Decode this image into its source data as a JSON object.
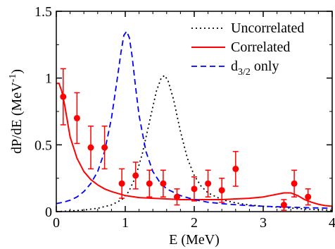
{
  "chart_data": {
    "type": "line",
    "xlabel": "E  (MeV)",
    "ylabel": {
      "main": "dP/dE  (MeV",
      "sup": "-1",
      "close": ")"
    },
    "xlim": [
      0,
      4
    ],
    "ylim": [
      0,
      1.5
    ],
    "x_ticks": [
      {
        "value": 0,
        "label": "0"
      },
      {
        "value": 1,
        "label": "1"
      },
      {
        "value": 2,
        "label": "2"
      },
      {
        "value": 3,
        "label": "3"
      },
      {
        "value": 4,
        "label": "4"
      }
    ],
    "y_ticks": [
      {
        "value": 0,
        "label": "0"
      },
      {
        "value": 0.5,
        "label": "0.5"
      },
      {
        "value": 1,
        "label": "1"
      },
      {
        "value": 1.5,
        "label": "1.5"
      }
    ],
    "grid": false,
    "legend_position": "top-right",
    "series": [
      {
        "name": "Uncorrelated",
        "style": "dotted",
        "color": "#000000",
        "x": [
          0.0,
          0.2,
          0.4,
          0.6,
          0.8,
          0.95,
          1.05,
          1.15,
          1.25,
          1.35,
          1.45,
          1.52,
          1.57,
          1.62,
          1.7,
          1.8,
          1.9,
          2.0,
          2.1,
          2.2,
          2.4,
          2.6,
          2.8,
          3.0,
          3.3,
          3.6,
          4.0
        ],
        "y": [
          0.0,
          0.005,
          0.012,
          0.025,
          0.05,
          0.09,
          0.15,
          0.26,
          0.44,
          0.67,
          0.9,
          1.0,
          1.02,
          0.98,
          0.84,
          0.6,
          0.4,
          0.27,
          0.19,
          0.14,
          0.09,
          0.065,
          0.05,
          0.04,
          0.03,
          0.02,
          0.01
        ]
      },
      {
        "name": "Correlated",
        "style": "solid",
        "color": "#ff0000",
        "x": [
          0.0,
          0.04,
          0.08,
          0.12,
          0.16,
          0.2,
          0.3,
          0.4,
          0.5,
          0.6,
          0.7,
          0.8,
          0.9,
          1.0,
          1.2,
          1.4,
          1.6,
          1.8,
          2.0,
          2.2,
          2.4,
          2.6,
          2.8,
          3.0,
          3.1,
          3.2,
          3.3,
          3.4,
          3.5,
          3.6,
          3.7,
          3.8,
          3.9,
          4.0
        ],
        "y": [
          0.96,
          0.96,
          0.9,
          0.8,
          0.68,
          0.56,
          0.4,
          0.3,
          0.24,
          0.2,
          0.17,
          0.15,
          0.135,
          0.12,
          0.105,
          0.1,
          0.095,
          0.09,
          0.09,
          0.09,
          0.09,
          0.095,
          0.1,
          0.11,
          0.12,
          0.13,
          0.14,
          0.14,
          0.12,
          0.09,
          0.07,
          0.055,
          0.045,
          0.04
        ]
      },
      {
        "name": "d",
        "name_sub": "3/2",
        "name_suffix": " only",
        "style": "dashed",
        "color": "#0000ff",
        "x": [
          0.0,
          0.1,
          0.2,
          0.3,
          0.4,
          0.5,
          0.6,
          0.7,
          0.8,
          0.88,
          0.94,
          0.98,
          1.02,
          1.06,
          1.1,
          1.15,
          1.2,
          1.3,
          1.4,
          1.5,
          1.6,
          1.8,
          2.0,
          2.2,
          2.5,
          2.8,
          3.0,
          3.3,
          3.6,
          4.0
        ],
        "y": [
          0.06,
          0.07,
          0.085,
          0.11,
          0.15,
          0.21,
          0.3,
          0.45,
          0.7,
          0.98,
          1.2,
          1.32,
          1.35,
          1.3,
          1.16,
          0.93,
          0.72,
          0.45,
          0.3,
          0.22,
          0.17,
          0.12,
          0.09,
          0.07,
          0.055,
          0.045,
          0.04,
          0.035,
          0.03,
          0.025
        ]
      },
      {
        "name": "",
        "style": "points",
        "color": "#ff0000",
        "points": [
          {
            "x": 0.1,
            "y": 0.86,
            "err": 0.21
          },
          {
            "x": 0.3,
            "y": 0.7,
            "err": 0.19
          },
          {
            "x": 0.5,
            "y": 0.48,
            "err": 0.16
          },
          {
            "x": 0.7,
            "y": 0.48,
            "err": 0.16
          },
          {
            "x": 0.95,
            "y": 0.21,
            "err": 0.11
          },
          {
            "x": 1.15,
            "y": 0.27,
            "err": 0.1
          },
          {
            "x": 1.35,
            "y": 0.21,
            "err": 0.1
          },
          {
            "x": 1.55,
            "y": 0.21,
            "err": 0.1
          },
          {
            "x": 1.75,
            "y": 0.11,
            "err": 0.06
          },
          {
            "x": 2.0,
            "y": 0.17,
            "err": 0.09
          },
          {
            "x": 2.2,
            "y": 0.21,
            "err": 0.1
          },
          {
            "x": 2.4,
            "y": 0.16,
            "err": 0.09
          },
          {
            "x": 2.6,
            "y": 0.32,
            "err": 0.13
          },
          {
            "x": 3.3,
            "y": 0.05,
            "err": 0.04
          },
          {
            "x": 3.45,
            "y": 0.21,
            "err": 0.1
          },
          {
            "x": 3.65,
            "y": 0.11,
            "err": 0.06
          }
        ]
      }
    ]
  }
}
